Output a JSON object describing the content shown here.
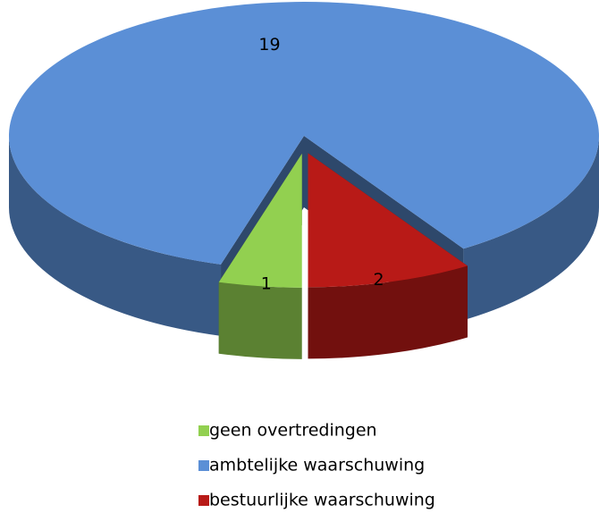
{
  "chart_data": {
    "type": "pie",
    "categories": [
      "geen overtredingen",
      "ambtelijke waarschuwing",
      "bestuurlijke waarschuwing"
    ],
    "values": [
      1,
      19,
      2
    ],
    "colors": [
      "#92d050",
      "#5b8fd6",
      "#b81a17"
    ],
    "legend": "bottom"
  }
}
